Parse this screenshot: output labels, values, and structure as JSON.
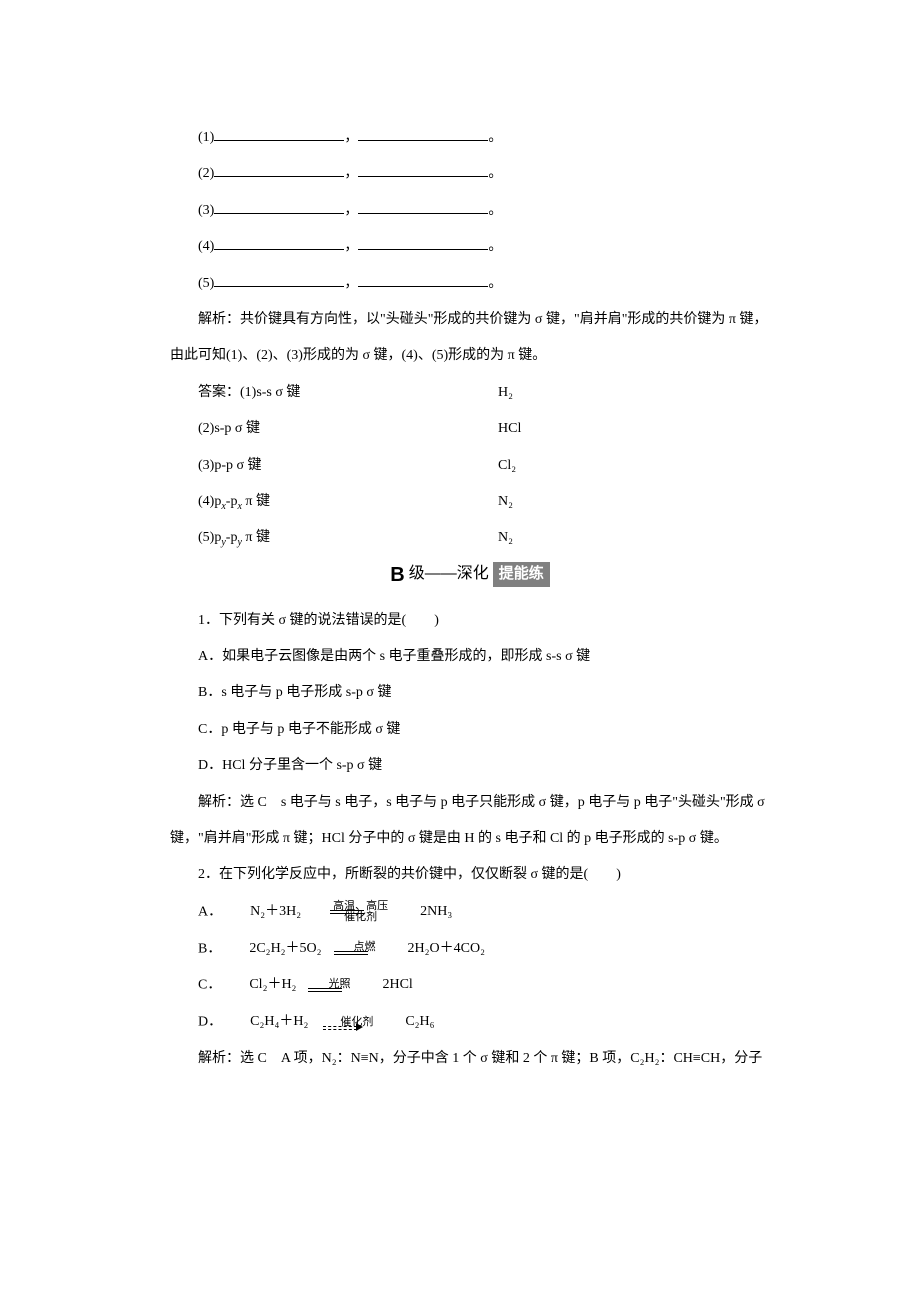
{
  "blanks": [
    {
      "num": "(1)"
    },
    {
      "num": "(2)"
    },
    {
      "num": "(3)"
    },
    {
      "num": "(4)"
    },
    {
      "num": "(5)"
    }
  ],
  "analysis1": "解析：共价键具有方向性，以\"头碰头\"形成的共价键为 σ 键，\"肩并肩\"形成的共价键为 π 键，由此可知(1)、(2)、(3)形成的为 σ 键，(4)、(5)形成的为 π 键。",
  "answers_label": "答案：",
  "answers": [
    {
      "left": "(1)s‐s σ 键",
      "right": "H₂"
    },
    {
      "left": "(2)s‐p σ 键",
      "right": "HCl"
    },
    {
      "left": "(3)p‐p σ 键",
      "right": "Cl₂"
    },
    {
      "left_html": "(4)p<span class='sub'>x</span>‐p<span class='sub'>x</span> π 键",
      "right": "N₂"
    },
    {
      "left_html": "(5)p<span class='sub'>y</span>‐p<span class='sub'>y</span> π 键",
      "right": "N₂"
    }
  ],
  "section": {
    "B": "B",
    "level": "级——深化",
    "badge": "提能练"
  },
  "q1": {
    "stem": "1．下列有关 σ 键的说法错误的是(　　)",
    "A": "A．如果电子云图像是由两个 s 电子重叠形成的，即形成 s‐s σ 键",
    "B": "B．s 电子与 p 电子形成 s‐p σ 键",
    "C": "C．p 电子与 p 电子不能形成 σ 键",
    "D": "D．HCl 分子里含一个 s‐p σ 键",
    "exp": "解析：选 C　s 电子与 s 电子，s 电子与 p 电子只能形成 σ 键，p 电子与 p 电子\"头碰头\"形成 σ 键，\"肩并肩\"形成 π 键；HCl 分子中的 σ 键是由 H 的 s 电子和 Cl 的 p 电子形成的 s‐p σ 键。"
  },
  "q2": {
    "stem": "2．在下列化学反应中，所断裂的共价键中，仅仅断裂 σ 键的是(　　)",
    "A": {
      "label": "A．",
      "lhs": "N₂＋3H₂",
      "top": "高温、高压",
      "bot": "催化剂",
      "rhs": "2NH₃",
      "type": "eq"
    },
    "B": {
      "label": "B．",
      "lhs": "2C₂H₂＋5O₂",
      "top": "点燃",
      "rhs": " 2H₂O＋4CO₂",
      "type": "eq"
    },
    "C": {
      "label": "C．",
      "lhs": "Cl₂＋H₂",
      "top": "光照",
      "rhs": " 2HCl",
      "type": "eq"
    },
    "D": {
      "label": "D．",
      "lhs": "C₂H₄＋H₂",
      "top": "催化剂",
      "rhs": "C₂H₆",
      "type": "arrow"
    },
    "exp": "解析：选 C　A 项，N₂：N≡N，分子中含 1 个 σ 键和 2 个 π 键；B 项，C₂H₂：CH≡CH，分子"
  }
}
